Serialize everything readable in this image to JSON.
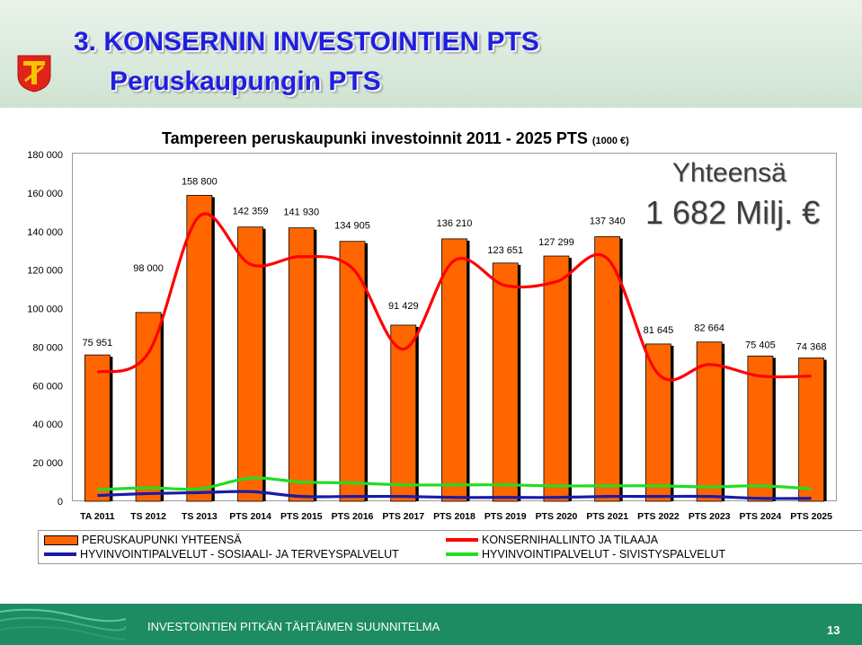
{
  "slide": {
    "title_line1": "3. KONSERNIN INVESTOINTIEN PTS",
    "title_line2": "Peruskaupungin PTS",
    "total_label": "Yhteensä",
    "total_value": "1 682 Milj. €",
    "footer_text": "INVESTOINTIEN PITKÄN TÄHTÄIMEN SUUNNITELMA",
    "page_number": "13"
  },
  "colors": {
    "bar": "#ff6600",
    "line_konserni": "#ff0000",
    "line_sosiaali": "#1a1aa8",
    "line_sivistys": "#22dd22",
    "title": "#1f1fe0",
    "footer": "#1e8c63"
  },
  "chart_data": {
    "type": "bar",
    "title": "Tampereen peruskaupunki investoinnit 2011 - 2025 PTS",
    "title_unit": "(1000 €)",
    "categories": [
      "TA 2011",
      "TS 2012",
      "TS 2013",
      "PTS 2014",
      "PTS 2015",
      "PTS 2016",
      "PTS 2017",
      "PTS 2018",
      "PTS 2019",
      "PTS 2020",
      "PTS 2021",
      "PTS 2022",
      "PTS 2023",
      "PTS 2024",
      "PTS 2025"
    ],
    "ylim": [
      0,
      180000
    ],
    "yticks": [
      0,
      20000,
      40000,
      60000,
      80000,
      100000,
      120000,
      140000,
      160000,
      180000
    ],
    "ytick_labels": [
      "0",
      "20 000",
      "40 000",
      "60 000",
      "80 000",
      "100 000",
      "120 000",
      "140 000",
      "160 000",
      "180 000"
    ],
    "grid": false,
    "legend_position": "bottom",
    "series": [
      {
        "name": "PERUSKAUPUNKI YHTEENSÄ",
        "type": "bar",
        "values": [
          75951,
          98000,
          158800,
          142359,
          141930,
          134905,
          91429,
          136210,
          123651,
          127299,
          137340,
          81645,
          82664,
          75405,
          74368
        ],
        "value_labels": [
          "75 951",
          "98 000",
          "158 800",
          "142 359",
          "141 930",
          "134 905",
          "91 429",
          "136 210",
          "123 651",
          "127 299",
          "137 340",
          "81 645",
          "82 664",
          "75 405",
          "74 368"
        ]
      },
      {
        "name": "KONSERNIHALLINTO JA TILAAJA",
        "type": "line",
        "values": [
          67000,
          77000,
          148000,
          123000,
          127000,
          121000,
          79000,
          125000,
          112000,
          114000,
          126000,
          66000,
          71000,
          65000,
          65000
        ]
      },
      {
        "name": "HYVINVOINTIPALVELUT - SOSIAALI- JA TERVEYSPALVELUT",
        "type": "line",
        "values": [
          3000,
          4000,
          4500,
          5000,
          2500,
          2500,
          2500,
          2000,
          2000,
          2000,
          2500,
          2500,
          2500,
          1500,
          1500
        ]
      },
      {
        "name": "HYVINVOINTIPALVELUT - SIVISTYSPALVELUT",
        "type": "line",
        "values": [
          6000,
          7000,
          6500,
          12000,
          10000,
          9500,
          8500,
          8500,
          8500,
          8000,
          8000,
          8000,
          7500,
          8000,
          6500
        ]
      }
    ]
  }
}
